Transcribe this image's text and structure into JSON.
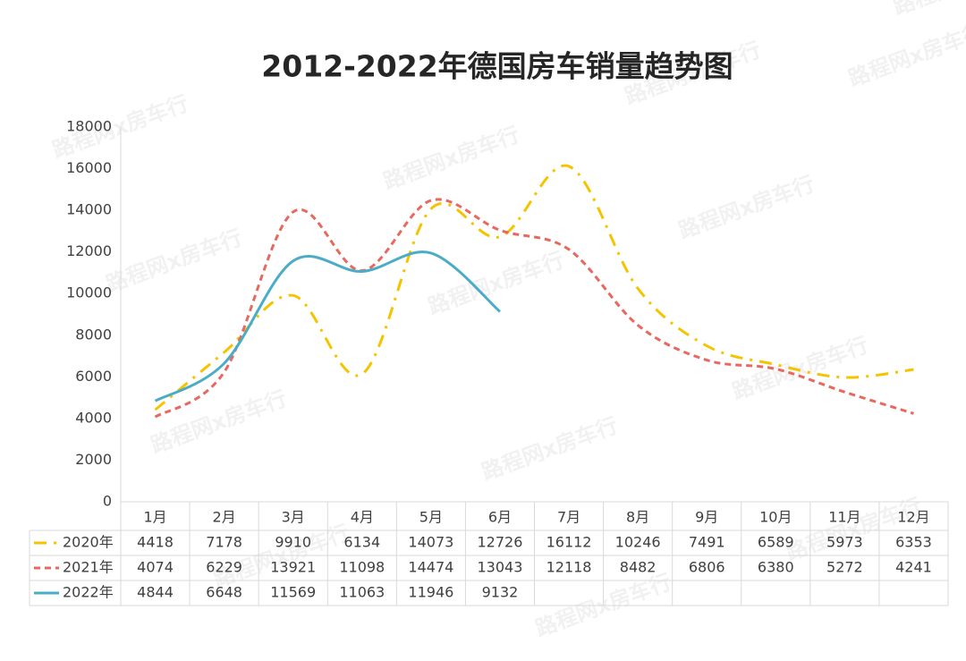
{
  "chart_data": {
    "type": "line",
    "title": "2012-2022年德国房车销量趋势图",
    "watermark": "路程网x房车行",
    "categories": [
      "1月",
      "2月",
      "3月",
      "4月",
      "5月",
      "6月",
      "7月",
      "8月",
      "9月",
      "10月",
      "11月",
      "12月"
    ],
    "series": [
      {
        "name": "2020年",
        "color": "#f5c400",
        "dash": "dashdot",
        "values": [
          4418,
          7178,
          9910,
          6134,
          14073,
          12726,
          16112,
          10246,
          7491,
          6589,
          5973,
          6353
        ]
      },
      {
        "name": "2021年",
        "color": "#e8685f",
        "dash": "dash",
        "values": [
          4074,
          6229,
          13921,
          11098,
          14474,
          13043,
          12118,
          8482,
          6806,
          6380,
          5272,
          4241
        ]
      },
      {
        "name": "2022年",
        "color": "#4bacc6",
        "dash": "solid",
        "values": [
          4844,
          6648,
          11569,
          11063,
          11946,
          9132,
          null,
          null,
          null,
          null,
          null,
          null
        ]
      }
    ],
    "ylim": [
      0,
      18000
    ],
    "yticks": [
      0,
      2000,
      4000,
      6000,
      8000,
      10000,
      12000,
      14000,
      16000,
      18000
    ],
    "smooth": true,
    "grid": false,
    "data_table": true
  }
}
